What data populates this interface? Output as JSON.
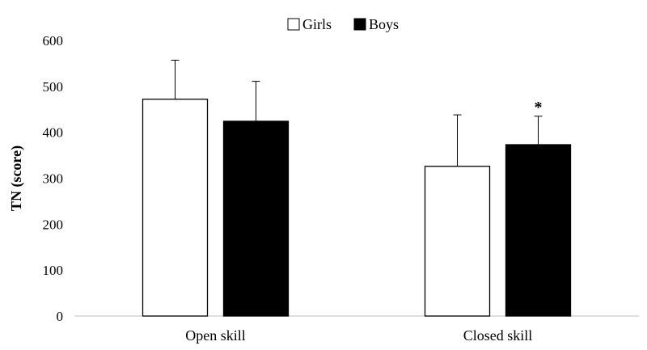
{
  "chart_data": {
    "type": "bar",
    "categories": [
      "Open skill",
      "Closed skill"
    ],
    "series": [
      {
        "name": "Girls",
        "values": [
          472,
          326
        ],
        "error": [
          85,
          112
        ],
        "color": "#ffffff"
      },
      {
        "name": "Boys",
        "values": [
          424,
          373
        ],
        "error": [
          87,
          62
        ],
        "color": "#000000"
      }
    ],
    "ylabel": "TN (score)",
    "xlabel": "",
    "ylim": [
      0,
      600
    ],
    "yticks": [
      "0",
      "100",
      "200",
      "300",
      "400",
      "500",
      "600"
    ],
    "legend": {
      "position": "top-center"
    },
    "grid": false,
    "annotations": [
      {
        "text": "*",
        "category": "Closed skill",
        "series": "Boys"
      }
    ]
  }
}
